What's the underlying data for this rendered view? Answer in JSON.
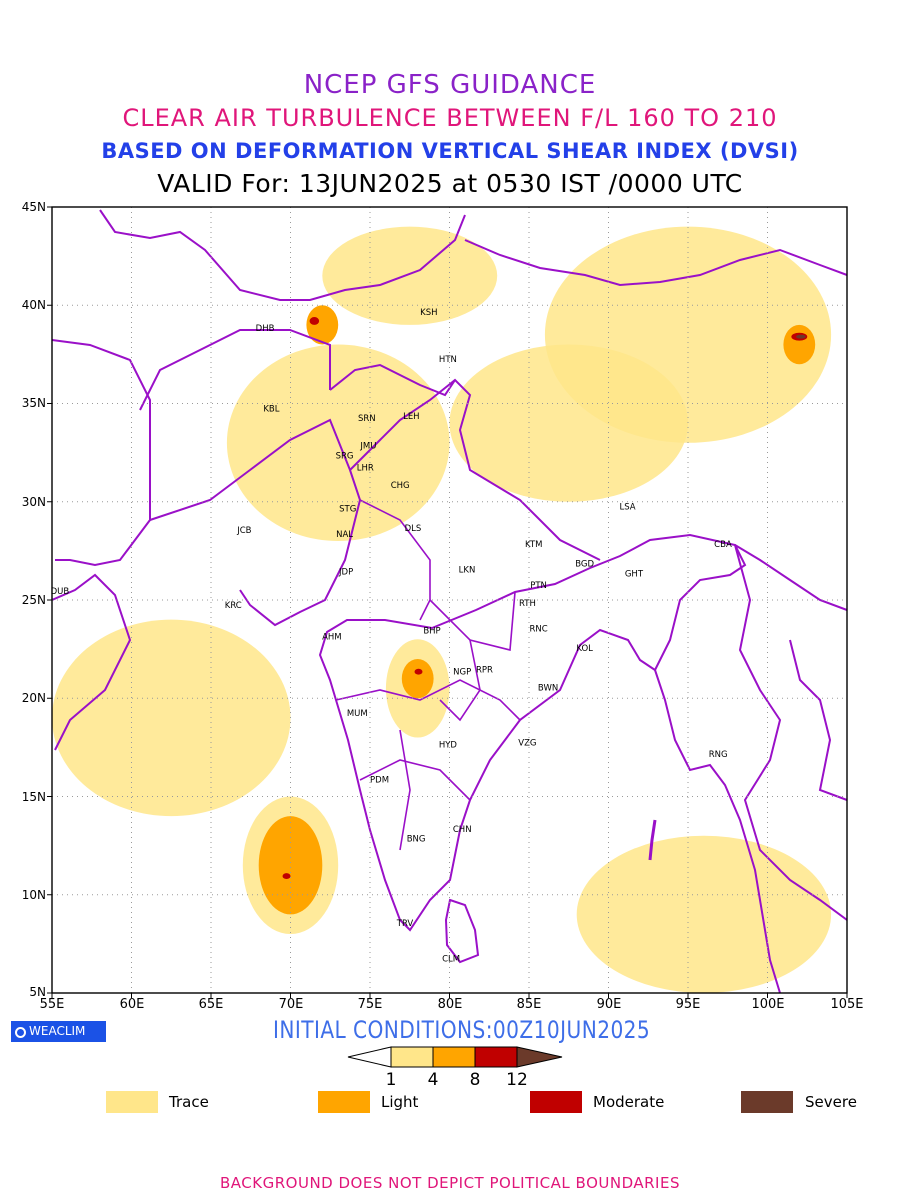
{
  "titles": {
    "line1": "NCEP GFS GUIDANCE",
    "line2": "CLEAR AIR TURBULENCE BETWEEN F/L 160 TO 210",
    "line3": "BASED ON DEFORMATION VERTICAL SHEAR INDEX (DVSI)",
    "line4": "VALID For: 13JUN2025 at 0530 IST /0000 UTC"
  },
  "axes": {
    "lat_ticks": [
      "45N",
      "40N",
      "35N",
      "30N",
      "25N",
      "20N",
      "15N",
      "10N",
      "5N"
    ],
    "lon_ticks": [
      "55E",
      "60E",
      "65E",
      "70E",
      "75E",
      "80E",
      "85E",
      "90E",
      "95E",
      "100E",
      "105E"
    ]
  },
  "stations": [
    {
      "code": "KSH",
      "lon": 78.7,
      "lat": 39.5
    },
    {
      "code": "DHB",
      "lon": 68.4,
      "lat": 38.7
    },
    {
      "code": "HTN",
      "lon": 79.9,
      "lat": 37.1
    },
    {
      "code": "KBL",
      "lon": 68.8,
      "lat": 34.6
    },
    {
      "code": "SRN",
      "lon": 74.8,
      "lat": 34.1
    },
    {
      "code": "LEH",
      "lon": 77.6,
      "lat": 34.2
    },
    {
      "code": "JMU",
      "lon": 74.9,
      "lat": 32.7
    },
    {
      "code": "SRG",
      "lon": 73.4,
      "lat": 32.2
    },
    {
      "code": "LHR",
      "lon": 74.7,
      "lat": 31.6
    },
    {
      "code": "CHG",
      "lon": 76.9,
      "lat": 30.7
    },
    {
      "code": "STG",
      "lon": 73.6,
      "lat": 29.5
    },
    {
      "code": "LSA",
      "lon": 91.2,
      "lat": 29.6
    },
    {
      "code": "JCB",
      "lon": 67.1,
      "lat": 28.4
    },
    {
      "code": "NAL",
      "lon": 73.4,
      "lat": 28.2
    },
    {
      "code": "DLS",
      "lon": 77.7,
      "lat": 28.5
    },
    {
      "code": "KTM",
      "lon": 85.3,
      "lat": 27.7
    },
    {
      "code": "CBA",
      "lon": 97.2,
      "lat": 27.7
    },
    {
      "code": "BGD",
      "lon": 88.5,
      "lat": 26.7
    },
    {
      "code": "GHT",
      "lon": 91.6,
      "lat": 26.2
    },
    {
      "code": "LKN",
      "lon": 81.1,
      "lat": 26.4
    },
    {
      "code": "JDP",
      "lon": 73.5,
      "lat": 26.3
    },
    {
      "code": "DUB",
      "lon": 55.5,
      "lat": 25.3
    },
    {
      "code": "PTN",
      "lon": 85.6,
      "lat": 25.6
    },
    {
      "code": "KRC",
      "lon": 66.4,
      "lat": 24.6
    },
    {
      "code": "RTH",
      "lon": 84.9,
      "lat": 24.7
    },
    {
      "code": "BHP",
      "lon": 78.9,
      "lat": 23.3
    },
    {
      "code": "AHM",
      "lon": 72.6,
      "lat": 23.0
    },
    {
      "code": "RNC",
      "lon": 85.6,
      "lat": 23.4
    },
    {
      "code": "KOL",
      "lon": 88.5,
      "lat": 22.4
    },
    {
      "code": "NGP",
      "lon": 80.8,
      "lat": 21.2
    },
    {
      "code": "RPR",
      "lon": 82.2,
      "lat": 21.3
    },
    {
      "code": "BWN",
      "lon": 86.2,
      "lat": 20.4
    },
    {
      "code": "MUM",
      "lon": 74.2,
      "lat": 19.1
    },
    {
      "code": "HYD",
      "lon": 79.9,
      "lat": 17.5
    },
    {
      "code": "VZG",
      "lon": 84.9,
      "lat": 17.6
    },
    {
      "code": "RNG",
      "lon": 96.9,
      "lat": 17.0
    },
    {
      "code": "PDM",
      "lon": 75.6,
      "lat": 15.7
    },
    {
      "code": "CHN",
      "lon": 80.8,
      "lat": 13.2
    },
    {
      "code": "BNG",
      "lon": 77.9,
      "lat": 12.7
    },
    {
      "code": "TRV",
      "lon": 77.2,
      "lat": 8.4
    },
    {
      "code": "CLM",
      "lon": 80.1,
      "lat": 6.6
    }
  ],
  "turbulence_areas": [
    {
      "level": "trace",
      "lon": [
        72,
        83
      ],
      "lat": [
        39,
        44
      ]
    },
    {
      "level": "trace",
      "lon": [
        86,
        104
      ],
      "lat": [
        33,
        44
      ]
    },
    {
      "level": "trace",
      "lon": [
        80,
        95
      ],
      "lat": [
        30,
        38
      ]
    },
    {
      "level": "trace",
      "lon": [
        66,
        80
      ],
      "lat": [
        28,
        38
      ]
    },
    {
      "level": "trace",
      "lon": [
        55,
        70
      ],
      "lat": [
        14,
        24
      ]
    },
    {
      "level": "trace",
      "lon": [
        67,
        73
      ],
      "lat": [
        8,
        15
      ]
    },
    {
      "level": "trace",
      "lon": [
        88,
        104
      ],
      "lat": [
        5,
        13
      ]
    },
    {
      "level": "trace",
      "lon": [
        76,
        80
      ],
      "lat": [
        18,
        23
      ]
    },
    {
      "level": "light",
      "lon": [
        71,
        73
      ],
      "lat": [
        38,
        40
      ]
    },
    {
      "level": "light",
      "lon": [
        101,
        103
      ],
      "lat": [
        37,
        39
      ]
    },
    {
      "level": "light",
      "lon": [
        68,
        72
      ],
      "lat": [
        9,
        14
      ]
    },
    {
      "level": "light",
      "lon": [
        77,
        79
      ],
      "lat": [
        20,
        22
      ]
    },
    {
      "level": "moderate",
      "lon": [
        71.2,
        71.8
      ],
      "lat": [
        39,
        39.4
      ]
    },
    {
      "level": "moderate",
      "lon": [
        101.5,
        102.5
      ],
      "lat": [
        38.2,
        38.6
      ]
    },
    {
      "level": "moderate",
      "lon": [
        77.8,
        78.3
      ],
      "lat": [
        21.2,
        21.5
      ]
    },
    {
      "level": "moderate",
      "lon": [
        69.5,
        70
      ],
      "lat": [
        10.8,
        11.1
      ]
    },
    {
      "level": "severe",
      "lon": [
        101.8,
        102.4
      ],
      "lat": [
        38.3,
        38.5
      ]
    }
  ],
  "initial_conditions": "INITIAL CONDITIONS:00Z10JUN2025",
  "colorbar": {
    "labels": [
      "1",
      "4",
      "8",
      "12"
    ],
    "colors": [
      "#ffffff",
      "#ffe68a",
      "#ffa500",
      "#c00000",
      "#6b3a2a"
    ]
  },
  "legend": [
    {
      "label": "Trace",
      "color": "#ffe68a"
    },
    {
      "label": "Light",
      "color": "#ffa500"
    },
    {
      "label": "Moderate",
      "color": "#c00000"
    },
    {
      "label": "Severe",
      "color": "#6b3a2a"
    }
  ],
  "logo_text": "WEACLIM",
  "footer": "BACKGROUND DOES NOT DEPICT POLITICAL BOUNDARIES",
  "boundary_color": "#9a10c8"
}
